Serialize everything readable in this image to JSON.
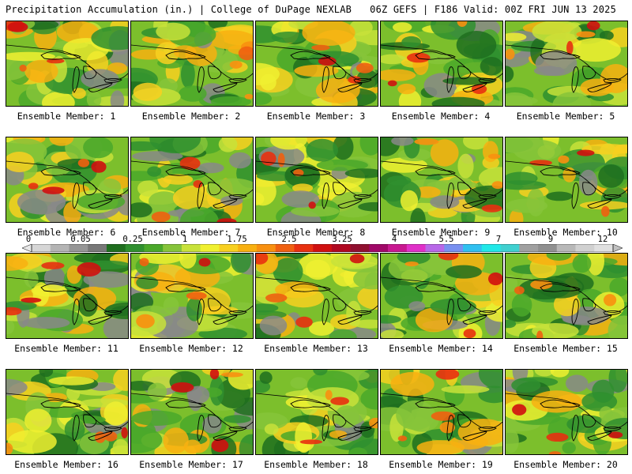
{
  "header": {
    "left_title": "Precipitation Accumulation (in.) | College of DuPage NEXLAB",
    "right_title": "06Z GEFS | F186 Valid: 00Z FRI JUN 13 2025"
  },
  "legend": {
    "tick_labels": [
      "0",
      "0.05",
      "0.25",
      "1",
      "1.75",
      "2.5",
      "3.25",
      "4",
      "5.5",
      "7",
      "9",
      "12"
    ],
    "colors": [
      "#d6d6d6",
      "#b4b4b4",
      "#969696",
      "#787878",
      "#1f6e1f",
      "#2f8f2f",
      "#4aa82a",
      "#86c43a",
      "#c8e23a",
      "#f0f030",
      "#f8d020",
      "#f8b010",
      "#f89010",
      "#f06010",
      "#e83010",
      "#d01010",
      "#b00820",
      "#901030",
      "#a00868",
      "#c81890",
      "#e030c8",
      "#b868e8",
      "#7890f0",
      "#30c0f0",
      "#20e8e8",
      "#40d0d0",
      "#a0a0a0",
      "#909090",
      "#b8b8b8",
      "#d0d0d0",
      "#e0e0e0"
    ]
  },
  "members": [
    {
      "label": "Ensemble Member: 1"
    },
    {
      "label": "Ensemble Member: 2"
    },
    {
      "label": "Ensemble Member: 3"
    },
    {
      "label": "Ensemble Member: 4"
    },
    {
      "label": "Ensemble Member: 5"
    },
    {
      "label": "Ensemble Member: 6"
    },
    {
      "label": "Ensemble Member: 7"
    },
    {
      "label": "Ensemble Member: 8"
    },
    {
      "label": "Ensemble Member: 9"
    },
    {
      "label": "Ensemble Member: 10"
    },
    {
      "label": "Ensemble Member: 11"
    },
    {
      "label": "Ensemble Member: 12"
    },
    {
      "label": "Ensemble Member: 13"
    },
    {
      "label": "Ensemble Member: 14"
    },
    {
      "label": "Ensemble Member: 15"
    },
    {
      "label": "Ensemble Member: 16"
    },
    {
      "label": "Ensemble Member: 17"
    },
    {
      "label": "Ensemble Member: 18"
    },
    {
      "label": "Ensemble Member: 19"
    },
    {
      "label": "Ensemble Member: 20"
    }
  ]
}
